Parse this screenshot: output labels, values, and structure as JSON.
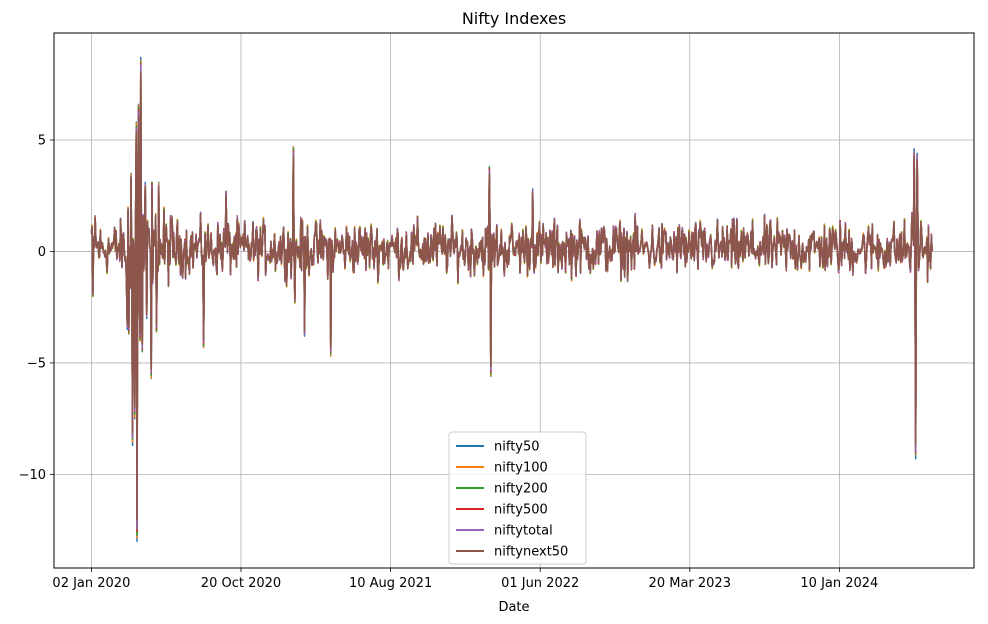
{
  "chart_data": {
    "type": "line",
    "title": "Nifty Indexes",
    "xlabel": "Date",
    "ylabel": "",
    "ylim": [
      -14.2,
      9.8
    ],
    "y_ticks": [
      5,
      0,
      -5,
      -10
    ],
    "y_tick_labels": [
      "5",
      "0",
      "−5",
      "−10"
    ],
    "x_ticks": [
      {
        "pos": 0,
        "label": "02 Jan 2020"
      },
      {
        "pos": 200,
        "label": "20 Oct 2020"
      },
      {
        "pos": 400,
        "label": "10 Aug 2021"
      },
      {
        "pos": 600,
        "label": "01 Jun 2022"
      },
      {
        "pos": 800,
        "label": "20 Mar 2023"
      },
      {
        "pos": 1000,
        "label": "10 Jan 2024"
      }
    ],
    "xlim": [
      -50,
      1180
    ],
    "grid": true,
    "legend_position": "lower-center",
    "series": [
      {
        "name": "nifty50",
        "color": "#1f77b4",
        "scale": 1.0
      },
      {
        "name": "nifty100",
        "color": "#ff7f0e",
        "scale": 0.985
      },
      {
        "name": "nifty200",
        "color": "#2ca02c",
        "scale": 0.975
      },
      {
        "name": "nifty500",
        "color": "#d62728",
        "scale": 0.965
      },
      {
        "name": "niftytotal",
        "color": "#9467bd",
        "scale": 0.96
      },
      {
        "name": "niftynext50",
        "color": "#8c564b",
        "scale": 0.93
      }
    ],
    "n_points": 1125,
    "base_noise_amplitude": 1.0,
    "key_points": [
      {
        "x": 0,
        "y": 0.9
      },
      {
        "x": 2,
        "y": -2.0
      },
      {
        "x": 5,
        "y": 1.6
      },
      {
        "x": 48,
        "y": -3.5
      },
      {
        "x": 50,
        "y": -3.7
      },
      {
        "x": 53,
        "y": 3.5
      },
      {
        "x": 55,
        "y": -8.7
      },
      {
        "x": 58,
        "y": -7.5
      },
      {
        "x": 60,
        "y": 5.8
      },
      {
        "x": 61,
        "y": -13.0
      },
      {
        "x": 63,
        "y": 6.6
      },
      {
        "x": 65,
        "y": -4.0
      },
      {
        "x": 66,
        "y": 8.7
      },
      {
        "x": 68,
        "y": -4.5
      },
      {
        "x": 72,
        "y": 3.1
      },
      {
        "x": 74,
        "y": -3.0
      },
      {
        "x": 80,
        "y": -5.7
      },
      {
        "x": 81,
        "y": 3.1
      },
      {
        "x": 87,
        "y": -3.6
      },
      {
        "x": 90,
        "y": 3.1
      },
      {
        "x": 150,
        "y": -4.3
      },
      {
        "x": 180,
        "y": 2.7
      },
      {
        "x": 270,
        "y": 4.7
      },
      {
        "x": 272,
        "y": -2.3
      },
      {
        "x": 285,
        "y": -3.8
      },
      {
        "x": 320,
        "y": -4.7
      },
      {
        "x": 532,
        "y": 3.8
      },
      {
        "x": 534,
        "y": -5.6
      },
      {
        "x": 590,
        "y": 2.8
      },
      {
        "x": 1100,
        "y": 4.6
      },
      {
        "x": 1102,
        "y": -9.3
      },
      {
        "x": 1104,
        "y": 4.4
      },
      {
        "x": 1120,
        "y": -0.4
      }
    ]
  }
}
